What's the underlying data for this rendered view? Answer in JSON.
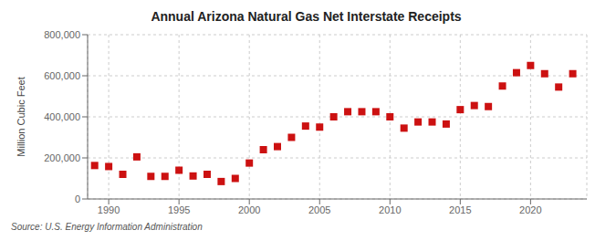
{
  "chart_data": {
    "type": "scatter",
    "title": "Annual Arizona Natural Gas Net Interstate Receipts",
    "ylabel": "Million Cubic Feet",
    "annotations": [
      "Source: U.S. Energy Information Administration"
    ],
    "x": [
      1989,
      1990,
      1991,
      1992,
      1993,
      1994,
      1995,
      1996,
      1997,
      1998,
      1999,
      2000,
      2001,
      2002,
      2003,
      2004,
      2005,
      2006,
      2007,
      2008,
      2009,
      2010,
      2011,
      2012,
      2013,
      2014,
      2015,
      2016,
      2017,
      2018,
      2019,
      2020,
      2021,
      2022,
      2023
    ],
    "values": [
      163000,
      158000,
      120000,
      205000,
      110000,
      110000,
      140000,
      112000,
      120000,
      85000,
      100000,
      175000,
      240000,
      255000,
      300000,
      355000,
      350000,
      400000,
      425000,
      425000,
      425000,
      400000,
      345000,
      375000,
      375000,
      365000,
      435000,
      455000,
      450000,
      550000,
      615000,
      650000,
      610000,
      545000,
      610000
    ],
    "color": "#cc1111",
    "marker": "square",
    "xlim": [
      1988.5,
      2024
    ],
    "ylim": [
      0,
      800000
    ],
    "xticks": [
      1990,
      1995,
      2000,
      2005,
      2010,
      2015,
      2020
    ],
    "yticks": [
      0,
      {
        "value": 200000,
        "label": "200,000"
      },
      {
        "value": 400000,
        "label": "400,000"
      },
      {
        "value": 600000,
        "label": "600,000"
      },
      {
        "value": 800000,
        "label": "800,000"
      }
    ],
    "grid": true
  }
}
